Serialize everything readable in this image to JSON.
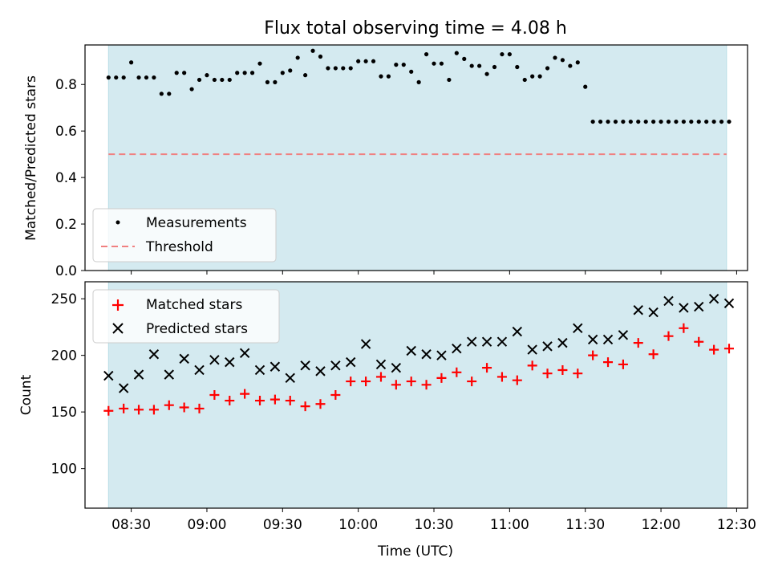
{
  "figure": {
    "title": "Flux total observing time = 4.08 h",
    "xlabel": "Time (UTC)",
    "x_ticks": [
      "08:30",
      "09:00",
      "09:30",
      "10:00",
      "10:30",
      "11:00",
      "11:30",
      "12:00",
      "12:30"
    ],
    "shade_color": "#d4eaf0",
    "shade_range": [
      "08:21",
      "12:26"
    ]
  },
  "chart_data": [
    {
      "type": "scatter",
      "ylabel": "Matched/Predicted stars",
      "ylim": [
        0,
        0.97
      ],
      "y_ticks": [
        "0.0",
        "0.2",
        "0.4",
        "0.6",
        "0.8"
      ],
      "legend": {
        "placement": "lower-left",
        "entries": [
          "Measurements",
          "Threshold"
        ]
      },
      "threshold": {
        "name": "Threshold",
        "value": 0.5,
        "color": "#f08080",
        "style": "dashed"
      },
      "series": [
        {
          "name": "Measurements",
          "color": "#000000",
          "marker": "dot",
          "x": [
            "08:21",
            "08:24",
            "08:27",
            "08:30",
            "08:33",
            "08:36",
            "08:39",
            "08:42",
            "08:45",
            "08:48",
            "08:51",
            "08:54",
            "08:57",
            "09:00",
            "09:03",
            "09:06",
            "09:09",
            "09:12",
            "09:15",
            "09:18",
            "09:21",
            "09:24",
            "09:27",
            "09:30",
            "09:33",
            "09:36",
            "09:39",
            "09:42",
            "09:45",
            "09:48",
            "09:51",
            "09:54",
            "09:57",
            "10:00",
            "10:03",
            "10:06",
            "10:09",
            "10:12",
            "10:15",
            "10:18",
            "10:21",
            "10:24",
            "10:27",
            "10:30",
            "10:33",
            "10:36",
            "10:39",
            "10:42",
            "10:45",
            "10:48",
            "10:51",
            "10:54",
            "10:57",
            "11:00",
            "11:03",
            "11:06",
            "11:09",
            "11:12",
            "11:15",
            "11:18",
            "11:21",
            "11:24",
            "11:27",
            "11:30",
            "11:33",
            "11:36",
            "11:39",
            "11:42",
            "11:45",
            "11:48",
            "11:51",
            "11:54",
            "11:57",
            "12:00",
            "12:03",
            "12:06",
            "12:09",
            "12:12",
            "12:15",
            "12:18",
            "12:21",
            "12:24",
            "12:27"
          ],
          "y": [
            0.83,
            0.83,
            0.83,
            0.895,
            0.83,
            0.83,
            0.83,
            0.76,
            0.76,
            0.85,
            0.85,
            0.78,
            0.82,
            0.84,
            0.82,
            0.82,
            0.82,
            0.85,
            0.85,
            0.85,
            0.89,
            0.81,
            0.81,
            0.85,
            0.86,
            0.915,
            0.84,
            0.945,
            0.92,
            0.87,
            0.87,
            0.87,
            0.87,
            0.9,
            0.9,
            0.9,
            0.835,
            0.835,
            0.885,
            0.885,
            0.855,
            0.81,
            0.93,
            0.89,
            0.89,
            0.82,
            0.935,
            0.91,
            0.88,
            0.88,
            0.845,
            0.875,
            0.93,
            0.93,
            0.875,
            0.82,
            0.835,
            0.835,
            0.87,
            0.915,
            0.905,
            0.88,
            0.895,
            0.79,
            0.64,
            0.64,
            0.64,
            0.64,
            0.64,
            0.64,
            0.64,
            0.64,
            0.64,
            0.64,
            0.64,
            0.64,
            0.64,
            0.64,
            0.64,
            0.64,
            0.64,
            0.64,
            0.64
          ]
        }
      ]
    },
    {
      "type": "scatter",
      "ylabel": "Count",
      "ylim": [
        65,
        265
      ],
      "y_ticks": [
        "100",
        "150",
        "200",
        "250"
      ],
      "legend": {
        "placement": "top-left",
        "entries": [
          "Matched stars",
          "Predicted stars"
        ]
      },
      "series": [
        {
          "name": "Matched stars",
          "color": "#ff0000",
          "marker": "plus",
          "x": [
            "08:21",
            "08:27",
            "08:33",
            "08:39",
            "08:45",
            "08:51",
            "08:57",
            "09:03",
            "09:09",
            "09:15",
            "09:21",
            "09:27",
            "09:33",
            "09:39",
            "09:45",
            "09:51",
            "09:57",
            "10:03",
            "10:09",
            "10:15",
            "10:21",
            "10:27",
            "10:33",
            "10:39",
            "10:45",
            "10:51",
            "10:57",
            "11:03",
            "11:09",
            "11:15",
            "11:21",
            "11:27",
            "11:33",
            "11:39",
            "11:45",
            "11:51",
            "11:57",
            "12:03",
            "12:09",
            "12:15",
            "12:21",
            "12:27"
          ],
          "y": [
            151,
            153,
            152,
            152,
            156,
            154,
            153,
            165,
            160,
            166,
            160,
            161,
            160,
            155,
            157,
            165,
            177,
            177,
            181,
            174,
            177,
            174,
            180,
            185,
            177,
            189,
            181,
            178,
            191,
            184,
            187,
            184,
            200,
            194,
            192,
            211,
            201,
            217,
            224,
            212,
            205,
            206
          ]
        },
        {
          "name": "Predicted stars",
          "color": "#000000",
          "marker": "x",
          "x": [
            "08:21",
            "08:27",
            "08:33",
            "08:39",
            "08:45",
            "08:51",
            "08:57",
            "09:03",
            "09:09",
            "09:15",
            "09:21",
            "09:27",
            "09:33",
            "09:39",
            "09:45",
            "09:51",
            "09:57",
            "10:03",
            "10:09",
            "10:15",
            "10:21",
            "10:27",
            "10:33",
            "10:39",
            "10:45",
            "10:51",
            "10:57",
            "11:03",
            "11:09",
            "11:15",
            "11:21",
            "11:27",
            "11:33",
            "11:39",
            "11:45",
            "11:51",
            "11:57",
            "12:03",
            "12:09",
            "12:15",
            "12:21",
            "12:27"
          ],
          "y": [
            182,
            171,
            183,
            201,
            183,
            197,
            187,
            196,
            194,
            202,
            187,
            190,
            180,
            191,
            186,
            191,
            194,
            210,
            192,
            189,
            204,
            201,
            200,
            206,
            212,
            212,
            212,
            221,
            205,
            208,
            211,
            224,
            214,
            214,
            218,
            240,
            238,
            248,
            242,
            243,
            250,
            246
          ]
        }
      ]
    }
  ]
}
